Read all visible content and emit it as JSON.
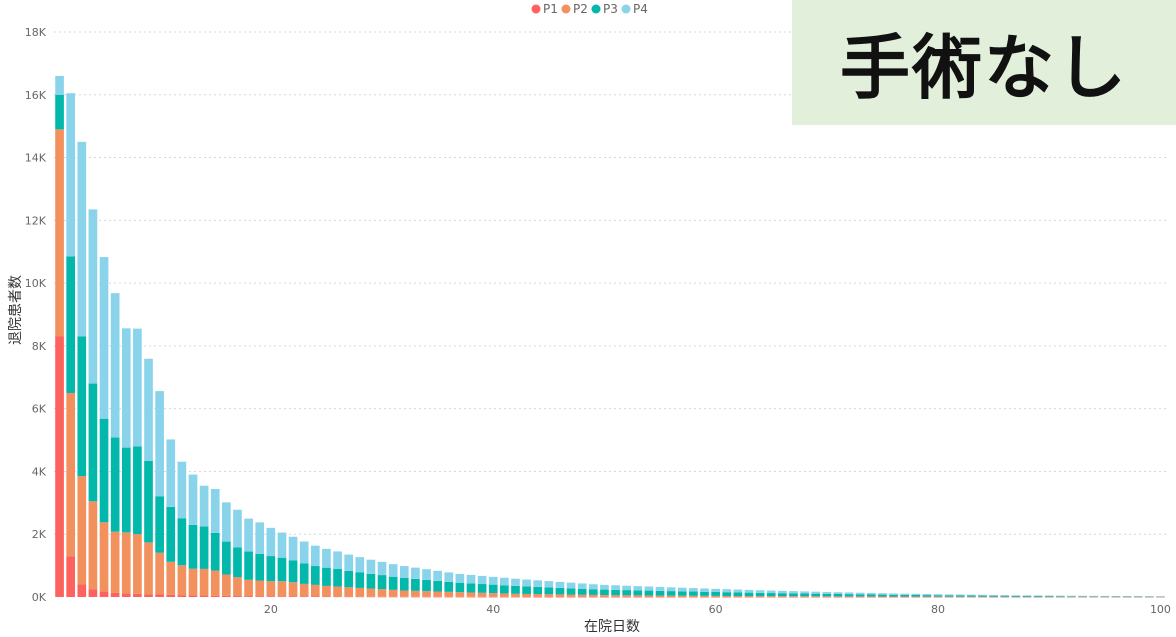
{
  "overlay_label": "手術なし",
  "chart_data": {
    "type": "bar",
    "stacked": true,
    "xlabel": "在院日数",
    "ylabel": "退院患者数",
    "ylim": [
      0,
      18000
    ],
    "yticks": [
      0,
      2000,
      4000,
      6000,
      8000,
      10000,
      12000,
      14000,
      16000,
      18000
    ],
    "ytick_labels": [
      "0K",
      "2K",
      "4K",
      "6K",
      "8K",
      "10K",
      "12K",
      "14K",
      "16K",
      "18K"
    ],
    "xticks": [
      20,
      40,
      60,
      80,
      100
    ],
    "xlim": [
      0.5,
      100.5
    ],
    "grid": true,
    "legend_position": "top-center",
    "series_colors": [
      "#fd625e",
      "#f2915e",
      "#01b8aa",
      "#8ad4eb"
    ],
    "x": [
      1,
      2,
      3,
      4,
      5,
      6,
      7,
      8,
      9,
      10,
      11,
      12,
      13,
      14,
      15,
      16,
      17,
      18,
      19,
      20,
      21,
      22,
      23,
      24,
      25,
      26,
      27,
      28,
      29,
      30,
      31,
      32,
      33,
      34,
      35,
      36,
      37,
      38,
      39,
      40,
      41,
      42,
      43,
      44,
      45,
      46,
      47,
      48,
      49,
      50,
      51,
      52,
      53,
      54,
      55,
      56,
      57,
      58,
      59,
      60,
      61,
      62,
      63,
      64,
      65,
      66,
      67,
      68,
      69,
      70,
      71,
      72,
      73,
      74,
      75,
      76,
      77,
      78,
      79,
      80,
      81,
      82,
      83,
      84,
      85,
      86,
      87,
      88,
      89,
      90,
      91,
      92,
      93,
      94,
      95,
      96,
      97,
      98,
      99,
      100
    ],
    "series": [
      {
        "name": "P1",
        "values": [
          8300,
          1300,
          400,
          250,
          180,
          130,
          110,
          100,
          90,
          80,
          70,
          60,
          50,
          45,
          40,
          35,
          30,
          28,
          26,
          24,
          22,
          20,
          18,
          16,
          14,
          12,
          11,
          10,
          9,
          8,
          7,
          6,
          6,
          5,
          5,
          4,
          4,
          4,
          3,
          3,
          3,
          3,
          2,
          2,
          2,
          2,
          2,
          2,
          2,
          1,
          1,
          1,
          1,
          1,
          1,
          1,
          1,
          1,
          1,
          1,
          1,
          1,
          1,
          1,
          1,
          1,
          1,
          1,
          1,
          1,
          1,
          1,
          1,
          1,
          1,
          1,
          1,
          1,
          1,
          1,
          1,
          1,
          1,
          1,
          1,
          1,
          1,
          1,
          1,
          1,
          1,
          1,
          1,
          1,
          1,
          1,
          1,
          1,
          1,
          1
        ]
      },
      {
        "name": "P2",
        "values": [
          6600,
          5200,
          3450,
          2800,
          2200,
          1950,
          1950,
          1900,
          1650,
          1330,
          1050,
          950,
          850,
          850,
          800,
          680,
          600,
          520,
          500,
          480,
          480,
          450,
          400,
          370,
          340,
          320,
          300,
          280,
          260,
          240,
          220,
          200,
          190,
          180,
          170,
          160,
          150,
          140,
          130,
          120,
          110,
          100,
          95,
          90,
          85,
          80,
          75,
          70,
          65,
          60,
          57,
          54,
          51,
          48,
          45,
          42,
          40,
          38,
          36,
          34,
          32,
          30,
          28,
          26,
          25,
          24,
          23,
          22,
          21,
          20,
          19,
          18,
          17,
          16,
          15,
          14,
          13,
          12,
          11,
          10,
          9,
          9,
          8,
          8,
          7,
          7,
          6,
          6,
          6,
          5,
          5,
          5,
          5,
          4,
          4,
          4,
          4,
          4,
          3,
          3
        ]
      },
      {
        "name": "P3",
        "values": [
          1100,
          4350,
          4450,
          3750,
          3300,
          3000,
          2700,
          2800,
          2600,
          1800,
          1750,
          1500,
          1400,
          1350,
          1200,
          1050,
          950,
          900,
          850,
          800,
          750,
          700,
          650,
          600,
          580,
          560,
          520,
          500,
          470,
          450,
          420,
          400,
          380,
          360,
          340,
          320,
          300,
          290,
          280,
          270,
          260,
          250,
          240,
          230,
          220,
          210,
          200,
          190,
          180,
          175,
          170,
          165,
          160,
          155,
          150,
          145,
          140,
          135,
          130,
          125,
          120,
          115,
          110,
          105,
          100,
          96,
          92,
          88,
          84,
          80,
          76,
          72,
          68,
          64,
          60,
          57,
          54,
          51,
          48,
          45,
          42,
          40,
          38,
          36,
          34,
          32,
          30,
          28,
          26,
          24,
          22,
          20,
          19,
          18,
          17,
          16,
          15,
          14,
          13,
          12
        ]
      },
      {
        "name": "P4",
        "values": [
          600,
          5200,
          6200,
          5550,
          5150,
          4600,
          3800,
          3750,
          3250,
          3350,
          2150,
          1800,
          1600,
          1300,
          1400,
          1250,
          1200,
          1050,
          1000,
          900,
          800,
          750,
          700,
          650,
          600,
          560,
          520,
          480,
          450,
          420,
          400,
          380,
          360,
          340,
          320,
          300,
          280,
          270,
          260,
          250,
          240,
          230,
          220,
          210,
          200,
          190,
          180,
          170,
          160,
          150,
          145,
          140,
          135,
          130,
          125,
          120,
          115,
          110,
          105,
          100,
          96,
          92,
          88,
          84,
          80,
          76,
          72,
          68,
          64,
          60,
          57,
          54,
          51,
          48,
          45,
          42,
          40,
          38,
          36,
          34,
          32,
          30,
          28,
          26,
          24,
          22,
          20,
          19,
          18,
          17,
          16,
          15,
          14,
          13,
          12,
          11,
          10,
          9,
          8,
          7
        ]
      }
    ]
  }
}
